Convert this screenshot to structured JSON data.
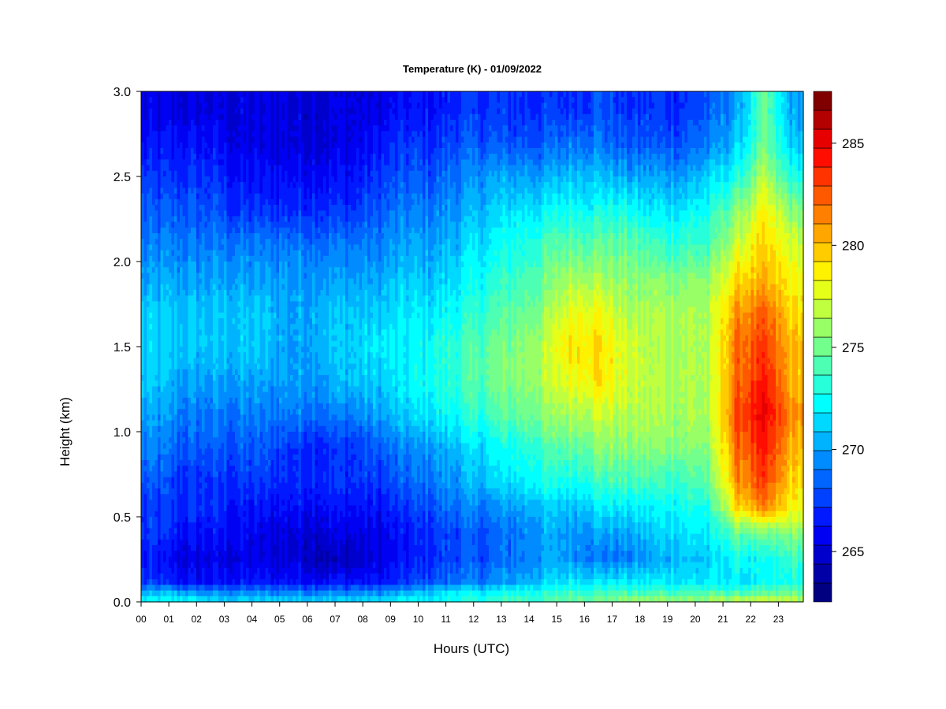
{
  "chart_data": {
    "type": "heatmap",
    "title": "Temperature (K) - 01/09/2022",
    "xlabel": "Hours (UTC)",
    "ylabel": "Height (km)",
    "x_ticks": [
      "00",
      "01",
      "02",
      "03",
      "04",
      "05",
      "06",
      "07",
      "08",
      "09",
      "10",
      "11",
      "12",
      "13",
      "14",
      "15",
      "16",
      "17",
      "18",
      "19",
      "20",
      "21",
      "22",
      "23"
    ],
    "y_ticks": [
      "0.0",
      "0.5",
      "1.0",
      "1.5",
      "2.0",
      "2.5",
      "3.0"
    ],
    "xlim": [
      0,
      23.9
    ],
    "ylim": [
      0,
      3
    ],
    "colorbar": {
      "ticks": [
        "265",
        "270",
        "275",
        "280",
        "285"
      ],
      "range": [
        263,
        288
      ],
      "step": 1,
      "colors": [
        "#000080",
        "#0000A6",
        "#0000CC",
        "#0000F2",
        "#0019FF",
        "#0040FF",
        "#0066FF",
        "#008CFF",
        "#00B3FF",
        "#00D9FF",
        "#00FFFF",
        "#26FFD9",
        "#4DFFB3",
        "#73FF8C",
        "#99FF66",
        "#C0FF40",
        "#E6FF19",
        "#FFF200",
        "#FFCC00",
        "#FFA600",
        "#FF8000",
        "#FF5900",
        "#FF3300",
        "#FF0D00",
        "#E60000",
        "#B30000",
        "#800000"
      ]
    },
    "temperature_grid": {
      "heights_km": [
        0.02,
        0.06,
        0.12,
        0.25,
        0.4,
        0.55,
        0.7,
        0.9,
        1.1,
        1.3,
        1.5,
        1.7,
        1.9,
        2.1,
        2.3,
        2.5,
        2.7,
        2.9
      ],
      "hours": [
        0.5,
        1.5,
        2.5,
        3.5,
        4.5,
        5.5,
        6.5,
        7.5,
        8.5,
        9.5,
        10.5,
        11.5,
        12.5,
        13.5,
        14.5,
        15.5,
        16.5,
        17.5,
        18.5,
        19.5,
        20.5,
        21.5,
        22.5,
        23.5
      ],
      "values_K": [
        [
          273,
          273,
          272,
          272,
          272,
          272,
          272,
          272,
          272,
          273,
          273,
          274,
          274,
          275,
          275,
          276,
          276,
          277,
          277,
          277,
          277,
          278,
          278,
          278
        ],
        [
          271,
          271,
          270,
          270,
          270,
          270,
          270,
          270,
          270,
          271,
          272,
          273,
          273,
          274,
          274,
          275,
          275,
          275,
          275,
          275,
          275,
          275,
          275,
          276
        ],
        [
          268,
          267,
          267,
          267,
          267,
          267,
          267,
          267,
          267,
          268,
          269,
          270,
          270,
          271,
          272,
          273,
          273,
          273,
          273,
          273,
          273,
          273,
          273,
          274
        ],
        [
          267,
          266,
          266,
          266,
          266,
          266,
          265,
          265,
          266,
          267,
          268,
          269,
          269,
          270,
          271,
          271,
          270,
          270,
          271,
          272,
          272,
          274,
          273,
          275
        ],
        [
          268,
          267,
          267,
          267,
          266,
          266,
          266,
          266,
          266,
          267,
          268,
          269,
          269,
          270,
          271,
          271,
          271,
          271,
          272,
          273,
          273,
          276,
          276,
          277
        ],
        [
          268,
          268,
          268,
          267,
          267,
          267,
          267,
          267,
          267,
          268,
          269,
          270,
          270,
          271,
          272,
          272,
          273,
          273,
          273,
          274,
          274,
          281,
          283,
          280
        ],
        [
          269,
          268,
          268,
          268,
          268,
          268,
          268,
          268,
          268,
          269,
          270,
          271,
          272,
          273,
          274,
          274,
          275,
          275,
          275,
          275,
          276,
          283,
          285,
          281
        ],
        [
          270,
          269,
          269,
          269,
          269,
          268,
          268,
          268,
          269,
          270,
          271,
          272,
          273,
          274,
          275,
          276,
          277,
          277,
          277,
          277,
          277,
          284,
          286,
          282
        ],
        [
          271,
          270,
          270,
          270,
          270,
          270,
          270,
          270,
          271,
          272,
          273,
          274,
          275,
          276,
          277,
          278,
          279,
          278,
          278,
          278,
          278,
          285,
          287,
          283
        ],
        [
          272,
          271,
          271,
          271,
          271,
          271,
          271,
          272,
          272,
          273,
          274,
          275,
          276,
          277,
          278,
          280,
          281,
          279,
          278,
          278,
          278,
          284,
          286,
          282
        ],
        [
          272,
          272,
          272,
          272,
          272,
          271,
          272,
          272,
          273,
          273,
          274,
          275,
          276,
          277,
          278,
          281,
          281,
          279,
          278,
          278,
          278,
          284,
          285,
          282
        ],
        [
          272,
          272,
          272,
          272,
          272,
          271,
          272,
          272,
          272,
          273,
          273,
          274,
          275,
          276,
          277,
          280,
          280,
          278,
          278,
          278,
          278,
          283,
          284,
          281
        ],
        [
          271,
          271,
          271,
          271,
          271,
          271,
          271,
          271,
          271,
          272,
          272,
          273,
          274,
          275,
          276,
          278,
          278,
          277,
          277,
          277,
          277,
          281,
          282,
          280
        ],
        [
          270,
          270,
          270,
          270,
          270,
          270,
          270,
          270,
          270,
          271,
          271,
          272,
          273,
          274,
          275,
          276,
          276,
          276,
          275,
          275,
          275,
          279,
          281,
          279
        ],
        [
          269,
          269,
          269,
          268,
          268,
          268,
          268,
          268,
          269,
          270,
          270,
          271,
          272,
          273,
          273,
          274,
          274,
          274,
          273,
          273,
          274,
          277,
          280,
          277
        ],
        [
          268,
          268,
          268,
          267,
          267,
          267,
          267,
          267,
          268,
          269,
          269,
          270,
          271,
          271,
          271,
          272,
          272,
          271,
          271,
          271,
          272,
          274,
          278,
          274
        ],
        [
          267,
          267,
          267,
          266,
          266,
          266,
          266,
          266,
          267,
          268,
          268,
          269,
          269,
          269,
          269,
          270,
          270,
          269,
          269,
          269,
          270,
          272,
          276,
          272
        ],
        [
          266,
          266,
          266,
          266,
          266,
          266,
          266,
          266,
          266,
          267,
          267,
          268,
          268,
          268,
          268,
          268,
          269,
          268,
          268,
          268,
          269,
          271,
          276,
          271
        ]
      ]
    }
  }
}
